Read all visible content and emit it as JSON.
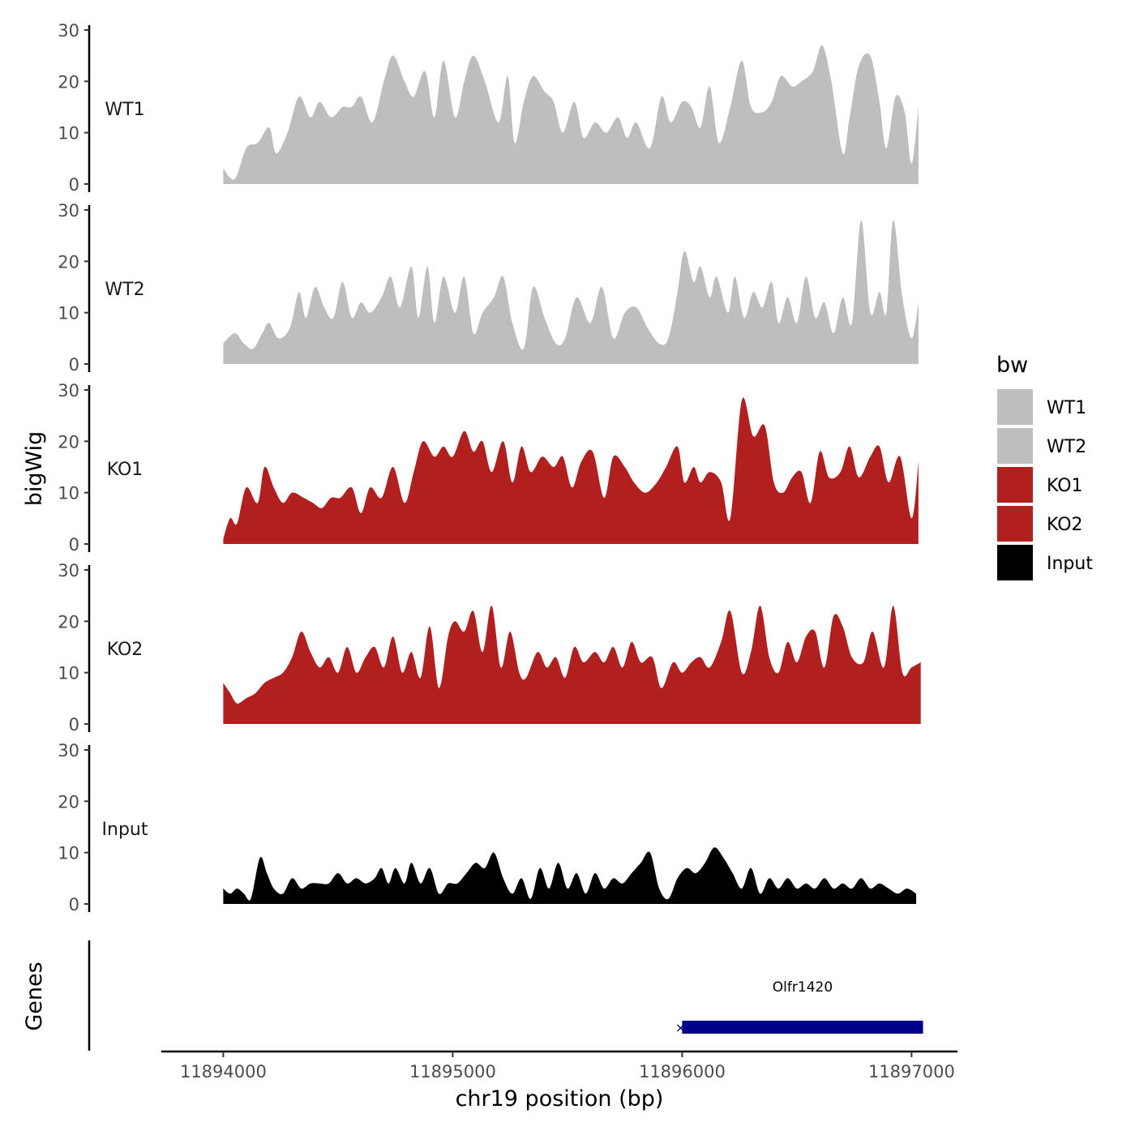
{
  "chart_data": {
    "type": "area",
    "xlabel": "chr19 position (bp)",
    "ylabel": "bigWig",
    "genes_label": "Genes",
    "xlim": [
      11893730,
      11897200
    ],
    "ylim": [
      0,
      30
    ],
    "x_ticks": [
      11894000,
      11895000,
      11896000,
      11897000
    ],
    "x_tick_labels": [
      "11894000",
      "11895000",
      "11896000",
      "11897000"
    ],
    "y_ticks": [
      0,
      10,
      20,
      30
    ],
    "y_tick_labels": [
      "0",
      "10",
      "20",
      "30"
    ],
    "grid": false,
    "legend": {
      "title": "bw",
      "position": "right",
      "items": [
        {
          "label": "WT1",
          "color": "#bebebe"
        },
        {
          "label": "WT2",
          "color": "#bebebe"
        },
        {
          "label": "KO1",
          "color": "#b21f1f"
        },
        {
          "label": "KO2",
          "color": "#b21f1f"
        },
        {
          "label": "Input",
          "color": "#000000"
        }
      ]
    },
    "series": [
      {
        "name": "WT1",
        "color": "#bebebe",
        "x": [
          11894000,
          11894050,
          11894100,
          11894150,
          11894200,
          11894230,
          11894280,
          11894330,
          11894380,
          11894420,
          11894470,
          11894520,
          11894560,
          11894600,
          11894650,
          11894700,
          11894740,
          11894790,
          11894830,
          11894880,
          11894920,
          11894960,
          11895010,
          11895050,
          11895090,
          11895140,
          11895200,
          11895240,
          11895270,
          11895310,
          11895350,
          11895400,
          11895440,
          11895480,
          11895530,
          11895570,
          11895620,
          11895670,
          11895720,
          11895760,
          11895800,
          11895860,
          11895910,
          11895950,
          11896000,
          11896040,
          11896080,
          11896120,
          11896160,
          11896210,
          11896260,
          11896300,
          11896350,
          11896390,
          11896430,
          11896480,
          11896520,
          11896570,
          11896610,
          11896650,
          11896700,
          11896730,
          11896770,
          11896820,
          11896860,
          11896890,
          11896930,
          11896970,
          11897000,
          11897030
        ],
        "values": [
          3,
          1,
          7,
          8,
          11,
          6,
          10,
          17,
          13,
          16,
          13,
          15,
          15,
          17,
          12,
          20,
          25,
          20,
          17,
          22,
          13,
          24,
          13,
          20,
          25,
          20,
          12,
          21,
          8,
          16,
          21,
          18,
          16,
          10,
          16,
          9,
          12,
          10,
          13,
          9,
          12,
          7,
          17,
          12,
          16,
          15,
          11,
          19,
          8,
          15,
          24,
          15,
          14,
          16,
          21,
          19,
          20,
          22,
          27,
          20,
          6,
          13,
          23,
          25,
          16,
          7,
          17,
          14,
          4,
          15
        ]
      },
      {
        "name": "WT2",
        "color": "#bebebe",
        "x": [
          11894000,
          11894050,
          11894090,
          11894130,
          11894170,
          11894200,
          11894240,
          11894290,
          11894330,
          11894360,
          11894400,
          11894440,
          11894480,
          11894520,
          11894560,
          11894600,
          11894640,
          11894690,
          11894730,
          11894770,
          11894820,
          11894850,
          11894890,
          11894920,
          11894960,
          11895010,
          11895050,
          11895090,
          11895130,
          11895180,
          11895220,
          11895260,
          11895310,
          11895350,
          11895400,
          11895450,
          11895490,
          11895540,
          11895600,
          11895650,
          11895700,
          11895750,
          11895800,
          11895850,
          11895900,
          11895940,
          11895980,
          11896010,
          11896050,
          11896080,
          11896120,
          11896150,
          11896200,
          11896230,
          11896270,
          11896310,
          11896350,
          11896390,
          11896420,
          11896460,
          11896500,
          11896540,
          11896580,
          11896620,
          11896660,
          11896700,
          11896740,
          11896780,
          11896820,
          11896860,
          11896890,
          11896920,
          11896960,
          11897000,
          11897030
        ],
        "values": [
          4,
          6,
          4,
          3,
          6,
          8,
          5,
          7,
          14,
          9,
          15,
          11,
          9,
          16,
          9,
          12,
          10,
          13,
          17,
          11,
          19,
          9,
          19,
          8,
          17,
          10,
          17,
          6,
          10,
          13,
          17,
          8,
          3,
          15,
          9,
          4,
          5,
          13,
          8,
          15,
          5,
          10,
          11,
          7,
          4,
          5,
          14,
          22,
          16,
          19,
          13,
          17,
          10,
          17,
          9,
          14,
          11,
          16,
          8,
          13,
          8,
          17,
          9,
          12,
          6,
          13,
          8,
          28,
          10,
          14,
          10,
          28,
          13,
          5,
          12
        ]
      },
      {
        "name": "KO1",
        "color": "#b21f1f",
        "x": [
          11894000,
          11894030,
          11894060,
          11894100,
          11894150,
          11894180,
          11894220,
          11894260,
          11894300,
          11894350,
          11894390,
          11894430,
          11894470,
          11894510,
          11894560,
          11894600,
          11894640,
          11894690,
          11894740,
          11894790,
          11894830,
          11894870,
          11894920,
          11894960,
          11895000,
          11895050,
          11895090,
          11895130,
          11895170,
          11895220,
          11895260,
          11895300,
          11895340,
          11895390,
          11895440,
          11895480,
          11895520,
          11895560,
          11895610,
          11895660,
          11895700,
          11895750,
          11895790,
          11895840,
          11895890,
          11895930,
          11895980,
          11896010,
          11896050,
          11896080,
          11896120,
          11896170,
          11896210,
          11896260,
          11896310,
          11896360,
          11896400,
          11896440,
          11896480,
          11896520,
          11896560,
          11896600,
          11896640,
          11896690,
          11896730,
          11896770,
          11896820,
          11896860,
          11896900,
          11896950,
          11897000,
          11897030
        ],
        "values": [
          1,
          5,
          4,
          11,
          8,
          15,
          11,
          8,
          10,
          9,
          8,
          7,
          9,
          9,
          11,
          6,
          11,
          9,
          15,
          8,
          14,
          20,
          17,
          19,
          17,
          22,
          18,
          20,
          14,
          20,
          12,
          19,
          14,
          17,
          15,
          17,
          11,
          16,
          18,
          9,
          17,
          15,
          12,
          10,
          12,
          15,
          19,
          12,
          15,
          12,
          14,
          12,
          5,
          28,
          21,
          23,
          12,
          10,
          13,
          14,
          8,
          18,
          13,
          14,
          19,
          13,
          17,
          19,
          12,
          17,
          5,
          16
        ]
      },
      {
        "name": "KO2",
        "color": "#b21f1f",
        "x": [
          11894000,
          11894030,
          11894060,
          11894100,
          11894140,
          11894180,
          11894220,
          11894260,
          11894300,
          11894340,
          11894380,
          11894420,
          11894460,
          11894500,
          11894540,
          11894580,
          11894620,
          11894660,
          11894700,
          11894740,
          11894780,
          11894820,
          11894860,
          11894900,
          11894940,
          11894980,
          11895010,
          11895050,
          11895090,
          11895130,
          11895170,
          11895210,
          11895250,
          11895290,
          11895320,
          11895370,
          11895410,
          11895450,
          11895490,
          11895530,
          11895570,
          11895620,
          11895660,
          11895700,
          11895740,
          11895780,
          11895820,
          11895870,
          11895910,
          11895960,
          11896000,
          11896040,
          11896080,
          11896120,
          11896170,
          11896210,
          11896260,
          11896300,
          11896340,
          11896380,
          11896420,
          11896460,
          11896500,
          11896540,
          11896580,
          11896620,
          11896660,
          11896700,
          11896740,
          11896790,
          11896830,
          11896880,
          11896920,
          11896960,
          11897000,
          11897040
        ],
        "values": [
          8,
          6,
          4,
          5,
          6,
          8,
          9,
          10,
          13,
          18,
          14,
          11,
          13,
          10,
          15,
          10,
          13,
          15,
          11,
          17,
          10,
          14,
          9,
          19,
          7,
          17,
          20,
          18,
          22,
          14,
          23,
          11,
          18,
          10,
          9,
          14,
          11,
          13,
          9,
          15,
          12,
          14,
          12,
          15,
          11,
          16,
          12,
          13,
          7,
          12,
          10,
          12,
          13,
          11,
          16,
          22,
          10,
          14,
          23,
          13,
          10,
          16,
          12,
          17,
          18,
          11,
          21,
          19,
          13,
          12,
          18,
          11,
          23,
          10,
          11,
          12
        ]
      },
      {
        "name": "Input",
        "color": "#000000",
        "x": [
          11894000,
          11894030,
          11894060,
          11894090,
          11894120,
          11894160,
          11894190,
          11894220,
          11894260,
          11894300,
          11894340,
          11894380,
          11894420,
          11894460,
          11894500,
          11894540,
          11894580,
          11894620,
          11894660,
          11894690,
          11894720,
          11894750,
          11894790,
          11894820,
          11894860,
          11894900,
          11894940,
          11894980,
          11895020,
          11895060,
          11895100,
          11895140,
          11895180,
          11895220,
          11895260,
          11895300,
          11895340,
          11895380,
          11895420,
          11895460,
          11895500,
          11895540,
          11895580,
          11895620,
          11895660,
          11895700,
          11895740,
          11895780,
          11895820,
          11895860,
          11895900,
          11895940,
          11895980,
          11896020,
          11896060,
          11896100,
          11896140,
          11896180,
          11896220,
          11896260,
          11896300,
          11896340,
          11896380,
          11896420,
          11896460,
          11896500,
          11896540,
          11896580,
          11896620,
          11896660,
          11896700,
          11896740,
          11896780,
          11896820,
          11896860,
          11896900,
          11896940,
          11896980,
          11897020
        ],
        "values": [
          3,
          2,
          3,
          2,
          1,
          9,
          6,
          3,
          2,
          5,
          3,
          4,
          4,
          4,
          6,
          4,
          5,
          4,
          5,
          7,
          4,
          7,
          4,
          8,
          4,
          7,
          2,
          4,
          4,
          6,
          8,
          7,
          10,
          5,
          2,
          5,
          1,
          7,
          3,
          8,
          3,
          6,
          2,
          6,
          3,
          5,
          4,
          6,
          8,
          10,
          3,
          1,
          5,
          7,
          6,
          8,
          11,
          9,
          6,
          3,
          7,
          2,
          5,
          3,
          5,
          3,
          4,
          3,
          5,
          3,
          4,
          3,
          5,
          3,
          4,
          3,
          2,
          3,
          2
        ]
      }
    ],
    "genes": [
      {
        "name": "Olfr1420",
        "start": 11896000,
        "end": 11897050,
        "strand": "-",
        "color": "#00008b"
      }
    ]
  }
}
